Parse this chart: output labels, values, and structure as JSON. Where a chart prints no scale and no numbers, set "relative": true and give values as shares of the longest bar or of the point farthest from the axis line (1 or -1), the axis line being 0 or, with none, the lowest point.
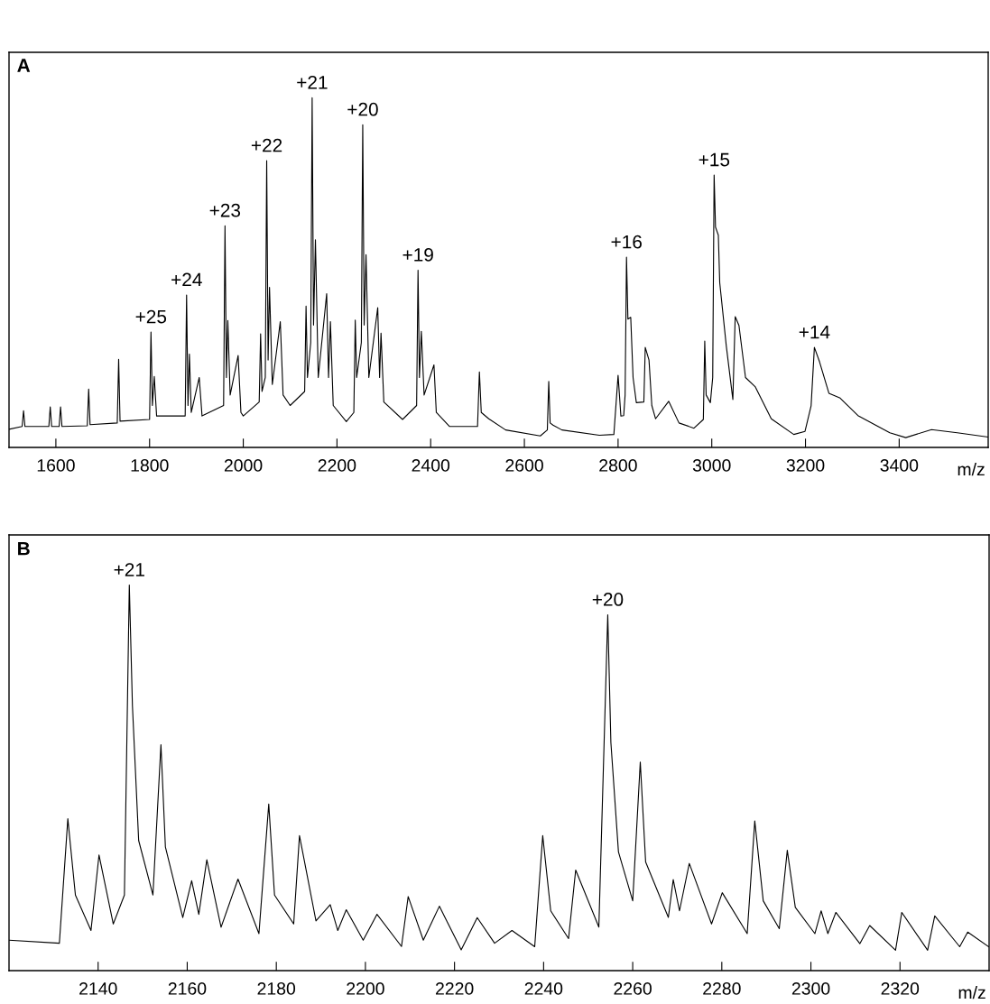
{
  "chart_data": [
    {
      "type": "line",
      "relative": true,
      "xlim": [
        1500,
        3590
      ],
      "xticks": [
        1600,
        1800,
        2000,
        2200,
        2400,
        2600,
        2800,
        3000,
        3200,
        3400
      ],
      "xlabel": "m/z",
      "tick_labels": "x",
      "annotations": [
        "A",
        {
          "text": "+25",
          "x": 1803,
          "y": 0.33
        },
        {
          "text": "+24",
          "x": 1879,
          "y": 0.436
        },
        {
          "text": "+23",
          "x": 1961,
          "y": 0.634
        },
        {
          "text": "+22",
          "x": 2050,
          "y": 0.82
        },
        {
          "text": "+21",
          "x": 2147,
          "y": 1.0
        },
        {
          "text": "+20",
          "x": 2255,
          "y": 0.923
        },
        {
          "text": "+19",
          "x": 2373,
          "y": 0.507
        },
        {
          "text": "+16",
          "x": 2818,
          "y": 0.544
        },
        {
          "text": "+15",
          "x": 3005,
          "y": 0.779
        },
        {
          "text": "+14",
          "x": 3219,
          "y": 0.286
        }
      ],
      "series": [
        {
          "color": "#000000",
          "x": [
            1500,
            1528,
            1531,
            1534,
            1585,
            1588,
            1591,
            1607,
            1610,
            1613,
            1667,
            1670,
            1673,
            1731,
            1734,
            1737,
            1800,
            1803,
            1806,
            1810,
            1815,
            1876,
            1879,
            1882,
            1885,
            1889,
            1906,
            1912,
            1958,
            1961,
            1964,
            1967,
            1972,
            1989,
            1995,
            2000,
            2034,
            2037,
            2040,
            2047,
            2050,
            2053,
            2056,
            2062,
            2079,
            2085,
            2100,
            2131,
            2134,
            2137,
            2144,
            2147,
            2150,
            2154,
            2160,
            2178,
            2182,
            2186,
            2192,
            2220,
            2236,
            2239,
            2242,
            2252,
            2255,
            2258,
            2262,
            2268,
            2287,
            2291,
            2294,
            2300,
            2340,
            2370,
            2373,
            2376,
            2380,
            2386,
            2407,
            2412,
            2440,
            2500,
            2504,
            2508,
            2524,
            2560,
            2634,
            2649,
            2652,
            2655,
            2661,
            2680,
            2760,
            2791,
            2800,
            2806,
            2812,
            2815,
            2818,
            2821,
            2827,
            2832,
            2839,
            2855,
            2858,
            2866,
            2872,
            2880,
            2908,
            2930,
            2962,
            2982,
            2985,
            2988,
            2997,
            3002,
            3005,
            3008,
            3014,
            3017,
            3031,
            3045,
            3050,
            3058,
            3072,
            3093,
            3127,
            3175,
            3199,
            3212,
            3219,
            3230,
            3250,
            3274,
            3312,
            3380,
            3414,
            3469,
            3524,
            3589
          ],
          "values": [
            0.052,
            0.06,
            0.105,
            0.06,
            0.06,
            0.116,
            0.06,
            0.06,
            0.116,
            0.06,
            0.062,
            0.167,
            0.065,
            0.07,
            0.252,
            0.075,
            0.08,
            0.33,
            0.12,
            0.203,
            0.09,
            0.09,
            0.436,
            0.12,
            0.267,
            0.1,
            0.2,
            0.09,
            0.12,
            0.634,
            0.2,
            0.363,
            0.15,
            0.263,
            0.1,
            0.09,
            0.13,
            0.325,
            0.16,
            0.2,
            0.82,
            0.25,
            0.458,
            0.18,
            0.36,
            0.15,
            0.12,
            0.16,
            0.404,
            0.2,
            0.3,
            1.0,
            0.35,
            0.594,
            0.2,
            0.44,
            0.2,
            0.36,
            0.12,
            0.074,
            0.1,
            0.364,
            0.2,
            0.3,
            0.923,
            0.35,
            0.551,
            0.2,
            0.4,
            0.2,
            0.327,
            0.13,
            0.08,
            0.12,
            0.507,
            0.2,
            0.332,
            0.15,
            0.236,
            0.1,
            0.06,
            0.06,
            0.216,
            0.1,
            0.082,
            0.05,
            0.033,
            0.05,
            0.189,
            0.07,
            0.064,
            0.05,
            0.035,
            0.037,
            0.206,
            0.09,
            0.091,
            0.15,
            0.544,
            0.367,
            0.372,
            0.2,
            0.128,
            0.13,
            0.286,
            0.25,
            0.12,
            0.082,
            0.132,
            0.07,
            0.055,
            0.08,
            0.304,
            0.15,
            0.128,
            0.2,
            0.779,
            0.63,
            0.607,
            0.471,
            0.29,
            0.137,
            0.374,
            0.349,
            0.2,
            0.173,
            0.082,
            0.037,
            0.046,
            0.119,
            0.286,
            0.245,
            0.155,
            0.141,
            0.091,
            0.042,
            0.028,
            0.051,
            0.042,
            0.03
          ]
        }
      ]
    },
    {
      "type": "line",
      "relative": true,
      "xlim": [
        2120,
        2340
      ],
      "xticks": [
        2140,
        2160,
        2180,
        2200,
        2220,
        2240,
        2260,
        2280,
        2300,
        2320
      ],
      "xlabel": "m/z",
      "tick_labels": "x",
      "annotations": [
        "B",
        {
          "text": "+21",
          "x": 2147,
          "y": 1.0
        },
        {
          "text": "+20",
          "x": 2254.4,
          "y": 0.923
        }
      ],
      "series": [
        {
          "color": "#000000",
          "x": [
            2120,
            2131.3,
            2133.2,
            2134.9,
            2138.4,
            2140.2,
            2143.4,
            2145.9,
            2147.0,
            2147.7,
            2149.1,
            2152.3,
            2154.1,
            2155.1,
            2159.0,
            2161.0,
            2162.6,
            2164.4,
            2167.6,
            2171.4,
            2176.1,
            2178.3,
            2179.6,
            2183.9,
            2185.2,
            2188.9,
            2192.1,
            2193.8,
            2195.7,
            2199.5,
            2202.6,
            2208.1,
            2209.6,
            2213.0,
            2216.6,
            2221.5,
            2225.1,
            2229.0,
            2232.9,
            2238.0,
            2239.8,
            2241.6,
            2245.6,
            2247.2,
            2252.4,
            2254.4,
            2255.1,
            2256.8,
            2260.0,
            2261.7,
            2262.9,
            2268.0,
            2269.1,
            2270.5,
            2272.7,
            2277.7,
            2280.1,
            2285.7,
            2287.4,
            2289.3,
            2292.9,
            2294.7,
            2296.5,
            2300.9,
            2302.3,
            2303.8,
            2305.6,
            2311.0,
            2313.2,
            2319.0,
            2320.4,
            2326.2,
            2327.8,
            2333.4,
            2335.2,
            2339.9
          ],
          "values": [
            0.079,
            0.071,
            0.394,
            0.196,
            0.104,
            0.3,
            0.121,
            0.196,
            1.0,
            0.6875,
            0.3375,
            0.196,
            0.586,
            0.321,
            0.1375,
            0.233,
            0.146,
            0.2875,
            0.1125,
            0.2375,
            0.096,
            0.432,
            0.196,
            0.121,
            0.35,
            0.129,
            0.171,
            0.104,
            0.158,
            0.079,
            0.146,
            0.0625,
            0.192,
            0.079,
            0.167,
            0.054,
            0.1375,
            0.071,
            0.104,
            0.062,
            0.35,
            0.155,
            0.083,
            0.261,
            0.113,
            0.923,
            0.592,
            0.308,
            0.181,
            0.541,
            0.282,
            0.138,
            0.236,
            0.155,
            0.278,
            0.121,
            0.202,
            0.096,
            0.388,
            0.181,
            0.109,
            0.312,
            0.164,
            0.096,
            0.155,
            0.096,
            0.151,
            0.07,
            0.117,
            0.053,
            0.151,
            0.053,
            0.142,
            0.062,
            0.1,
            0.062
          ]
        }
      ]
    }
  ]
}
